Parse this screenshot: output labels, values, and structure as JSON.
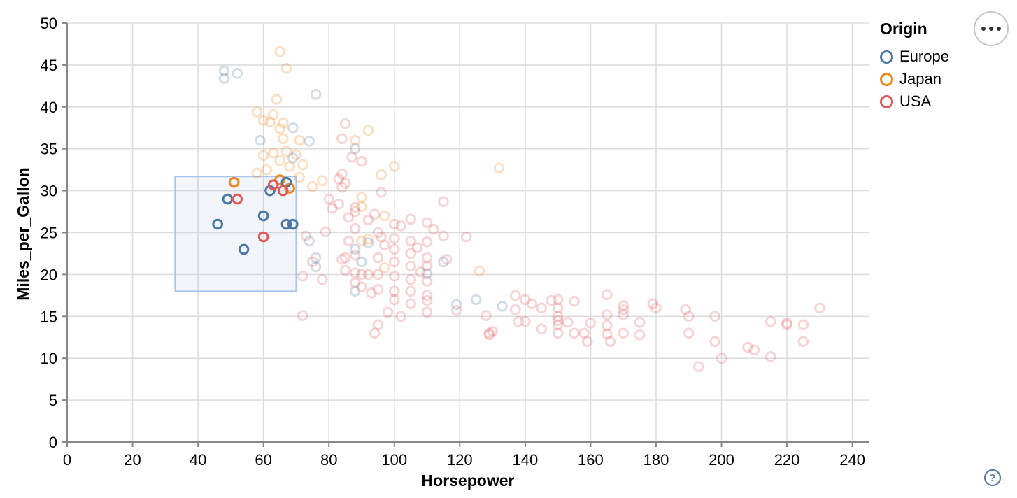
{
  "chart_data": {
    "type": "scatter",
    "title": "",
    "xlabel": "Horsepower",
    "ylabel": "Miles_per_Gallon",
    "xlim": [
      0,
      245
    ],
    "ylim": [
      0,
      50
    ],
    "x_ticks": [
      0,
      20,
      40,
      60,
      80,
      100,
      120,
      140,
      160,
      180,
      200,
      220,
      240
    ],
    "y_ticks": [
      0,
      5,
      10,
      15,
      20,
      25,
      30,
      35,
      40,
      45,
      50
    ],
    "grid": true,
    "legend": {
      "title": "Origin",
      "position": "top-right",
      "entries": [
        {
          "label": "Europe",
          "color": "#4c78a8"
        },
        {
          "label": "Japan",
          "color": "#f58518"
        },
        {
          "label": "USA",
          "color": "#e45756"
        }
      ]
    },
    "origin_colors": {
      "Europe": "#4c78a8",
      "Japan": "#f58518",
      "USA": "#e45756"
    },
    "brush_selection": {
      "x": [
        33,
        70
      ],
      "y": [
        18,
        31.7
      ],
      "fill": "#b0c6e8",
      "fill_opacity": 0.16,
      "stroke": "#aac4ee"
    },
    "unselected_opacity": 0.25,
    "point_columns": [
      "Horsepower",
      "Miles_per_Gallon",
      "Origin",
      "selected"
    ],
    "points": [
      [
        51,
        31,
        "Japan",
        1
      ],
      [
        65,
        31.3,
        "Japan",
        1
      ],
      [
        68,
        30.3,
        "Japan",
        1
      ],
      [
        67,
        31,
        "Europe",
        1
      ],
      [
        62,
        30,
        "Europe",
        1
      ],
      [
        49,
        29,
        "Europe",
        1
      ],
      [
        60,
        27,
        "Europe",
        1
      ],
      [
        46,
        26,
        "Europe",
        1
      ],
      [
        67,
        26,
        "Europe",
        1
      ],
      [
        69,
        26,
        "Europe",
        1
      ],
      [
        54,
        23,
        "Europe",
        1
      ],
      [
        63,
        30.7,
        "USA",
        1
      ],
      [
        66,
        30,
        "USA",
        1
      ],
      [
        52,
        29,
        "USA",
        1
      ],
      [
        60,
        24.5,
        "USA",
        1
      ],
      [
        65,
        46.6,
        "Japan",
        0
      ],
      [
        67,
        44.6,
        "Japan",
        0
      ],
      [
        48,
        44.3,
        "Europe",
        0
      ],
      [
        52,
        44,
        "Europe",
        0
      ],
      [
        48,
        43.4,
        "Europe",
        0
      ],
      [
        76,
        41.5,
        "Europe",
        0
      ],
      [
        64,
        40.9,
        "Japan",
        0
      ],
      [
        58,
        39.4,
        "Japan",
        0
      ],
      [
        63,
        39.1,
        "Japan",
        0
      ],
      [
        60,
        38.4,
        "Japan",
        0
      ],
      [
        62,
        38.2,
        "Japan",
        0
      ],
      [
        66,
        38.1,
        "Japan",
        0
      ],
      [
        65,
        37.4,
        "Japan",
        0
      ],
      [
        69,
        37.5,
        "Europe",
        0
      ],
      [
        85,
        38,
        "USA",
        0
      ],
      [
        92,
        37.2,
        "Japan",
        0
      ],
      [
        59,
        36,
        "Europe",
        0
      ],
      [
        66,
        36.2,
        "Japan",
        0
      ],
      [
        71,
        36,
        "Japan",
        0
      ],
      [
        74,
        35.9,
        "Europe",
        0
      ],
      [
        84,
        36.2,
        "USA",
        0
      ],
      [
        88,
        36,
        "Japan",
        0
      ],
      [
        88,
        35,
        "Europe",
        0
      ],
      [
        87,
        34,
        "USA",
        0
      ],
      [
        67,
        34.7,
        "Japan",
        0
      ],
      [
        63,
        34.5,
        "Japan",
        0
      ],
      [
        70,
        34.3,
        "Japan",
        0
      ],
      [
        60,
        34.2,
        "Japan",
        0
      ],
      [
        69,
        33.9,
        "Europe",
        0
      ],
      [
        90,
        33.5,
        "USA",
        0
      ],
      [
        65,
        33.6,
        "Japan",
        0
      ],
      [
        72,
        33.1,
        "Japan",
        0
      ],
      [
        68,
        32.9,
        "Japan",
        0
      ],
      [
        100,
        32.9,
        "Japan",
        0
      ],
      [
        132,
        32.7,
        "Japan",
        0
      ],
      [
        61,
        32.5,
        "Japan",
        0
      ],
      [
        96,
        31.9,
        "Japan",
        0
      ],
      [
        84,
        32,
        "USA",
        0
      ],
      [
        58,
        32.1,
        "Japan",
        0
      ],
      [
        83,
        31.4,
        "USA",
        0
      ],
      [
        85,
        30.9,
        "USA",
        0
      ],
      [
        84,
        30.4,
        "USA",
        0
      ],
      [
        90,
        29.2,
        "Japan",
        0
      ],
      [
        115,
        28.7,
        "USA",
        0
      ],
      [
        75,
        30.5,
        "Japan",
        0
      ],
      [
        78,
        31.2,
        "Japan",
        0
      ],
      [
        71,
        31.6,
        "Japan",
        0
      ],
      [
        74,
        24,
        "Europe",
        0
      ],
      [
        76,
        22,
        "Europe",
        0
      ],
      [
        73,
        24.6,
        "USA",
        0
      ],
      [
        75,
        21.5,
        "USA",
        0
      ],
      [
        72,
        19.8,
        "USA",
        0
      ],
      [
        76,
        20.9,
        "Europe",
        0
      ],
      [
        78,
        19.4,
        "USA",
        0
      ],
      [
        72,
        15.1,
        "USA",
        0
      ],
      [
        80,
        29,
        "USA",
        0
      ],
      [
        83,
        28.4,
        "USA",
        0
      ],
      [
        88,
        28,
        "USA",
        0
      ],
      [
        88,
        27.5,
        "USA",
        0
      ],
      [
        90,
        28.1,
        "Japan",
        0
      ],
      [
        94,
        27.2,
        "USA",
        0
      ],
      [
        86,
        26.8,
        "USA",
        0
      ],
      [
        92,
        26.5,
        "USA",
        0
      ],
      [
        97,
        27,
        "Japan",
        0
      ],
      [
        100,
        26,
        "USA",
        0
      ],
      [
        105,
        26.6,
        "USA",
        0
      ],
      [
        110,
        26.2,
        "USA",
        0
      ],
      [
        88,
        25.5,
        "USA",
        0
      ],
      [
        95,
        25,
        "USA",
        0
      ],
      [
        100,
        24.3,
        "USA",
        0
      ],
      [
        105,
        24,
        "USA",
        0
      ],
      [
        110,
        23.9,
        "USA",
        0
      ],
      [
        115,
        24.6,
        "USA",
        0
      ],
      [
        86,
        24,
        "USA",
        0
      ],
      [
        90,
        24,
        "Japan",
        0
      ],
      [
        92,
        23.8,
        "Europe",
        0
      ],
      [
        97,
        23.5,
        "USA",
        0
      ],
      [
        100,
        23,
        "USA",
        0
      ],
      [
        105,
        22.5,
        "USA",
        0
      ],
      [
        110,
        22,
        "USA",
        0
      ],
      [
        88,
        22.3,
        "USA",
        0
      ],
      [
        85,
        22,
        "USA",
        0
      ],
      [
        95,
        22,
        "USA",
        0
      ],
      [
        100,
        21.5,
        "USA",
        0
      ],
      [
        105,
        21,
        "USA",
        0
      ],
      [
        110,
        21,
        "USA",
        0
      ],
      [
        115,
        21.5,
        "Europe",
        0
      ],
      [
        85,
        20.5,
        "USA",
        0
      ],
      [
        88,
        20.2,
        "USA",
        0
      ],
      [
        90,
        20,
        "USA",
        0
      ],
      [
        92,
        20,
        "USA",
        0
      ],
      [
        95,
        20,
        "USA",
        0
      ],
      [
        100,
        19.8,
        "USA",
        0
      ],
      [
        105,
        19.4,
        "USA",
        0
      ],
      [
        110,
        19.2,
        "USA",
        0
      ],
      [
        88,
        19,
        "USA",
        0
      ],
      [
        90,
        18.5,
        "USA",
        0
      ],
      [
        95,
        18.2,
        "USA",
        0
      ],
      [
        100,
        18,
        "USA",
        0
      ],
      [
        105,
        18,
        "USA",
        0
      ],
      [
        110,
        17.5,
        "USA",
        0
      ],
      [
        100,
        17,
        "USA",
        0
      ],
      [
        110,
        16.9,
        "USA",
        0
      ],
      [
        105,
        16.5,
        "USA",
        0
      ],
      [
        110,
        15.5,
        "USA",
        0
      ],
      [
        98,
        15.5,
        "USA",
        0
      ],
      [
        102,
        15,
        "USA",
        0
      ],
      [
        88,
        18,
        "Europe",
        0
      ],
      [
        93,
        17.8,
        "USA",
        0
      ],
      [
        96,
        24.5,
        "USA",
        0
      ],
      [
        108,
        20.3,
        "USA",
        0
      ],
      [
        84,
        21.8,
        "USA",
        0
      ],
      [
        107,
        23.2,
        "USA",
        0
      ],
      [
        112,
        25.4,
        "USA",
        0
      ],
      [
        102,
        25.8,
        "USA",
        0
      ],
      [
        96,
        29.8,
        "USA",
        0
      ],
      [
        81,
        27.9,
        "USA",
        0
      ],
      [
        79,
        25.1,
        "USA",
        0
      ],
      [
        92,
        24.2,
        "Japan",
        0
      ],
      [
        97,
        20.8,
        "Japan",
        0
      ],
      [
        90,
        21.5,
        "Europe",
        0
      ],
      [
        110,
        20.1,
        "Europe",
        0
      ],
      [
        88,
        23,
        "Europe",
        0
      ],
      [
        95,
        14,
        "USA",
        0
      ],
      [
        94,
        13,
        "USA",
        0
      ],
      [
        119,
        16.4,
        "Europe",
        0
      ],
      [
        125,
        17,
        "Europe",
        0
      ],
      [
        133,
        16.2,
        "Europe",
        0
      ],
      [
        119,
        15.7,
        "USA",
        0
      ],
      [
        128,
        15.1,
        "USA",
        0
      ],
      [
        130,
        13.2,
        "USA",
        0
      ],
      [
        129,
        13,
        "USA",
        0
      ],
      [
        138,
        14.4,
        "USA",
        0
      ],
      [
        140,
        14.4,
        "USA",
        0
      ],
      [
        137,
        17.5,
        "USA",
        0
      ],
      [
        140,
        17,
        "USA",
        0
      ],
      [
        142,
        16.5,
        "USA",
        0
      ],
      [
        145,
        16,
        "USA",
        0
      ],
      [
        148,
        16.9,
        "USA",
        0
      ],
      [
        150,
        17,
        "USA",
        0
      ],
      [
        150,
        16,
        "USA",
        0
      ],
      [
        150,
        15,
        "USA",
        0
      ],
      [
        150,
        14.5,
        "USA",
        0
      ],
      [
        150,
        14,
        "USA",
        0
      ],
      [
        150,
        13,
        "USA",
        0
      ],
      [
        153,
        14.3,
        "USA",
        0
      ],
      [
        129,
        12.8,
        "USA",
        0
      ],
      [
        145,
        13.5,
        "USA",
        0
      ],
      [
        137,
        15.8,
        "USA",
        0
      ],
      [
        126,
        20.4,
        "Japan",
        0
      ],
      [
        122,
        24.5,
        "USA",
        0
      ],
      [
        116,
        21.8,
        "USA",
        0
      ],
      [
        165,
        17.6,
        "USA",
        0
      ],
      [
        155,
        16.8,
        "USA",
        0
      ],
      [
        170,
        16.3,
        "USA",
        0
      ],
      [
        170,
        15.8,
        "USA",
        0
      ],
      [
        170,
        15.2,
        "USA",
        0
      ],
      [
        165,
        15.2,
        "USA",
        0
      ],
      [
        165,
        13.9,
        "USA",
        0
      ],
      [
        165,
        12.9,
        "USA",
        0
      ],
      [
        160,
        14.2,
        "USA",
        0
      ],
      [
        155,
        13,
        "USA",
        0
      ],
      [
        158,
        13,
        "USA",
        0
      ],
      [
        159,
        12,
        "USA",
        0
      ],
      [
        166,
        12,
        "USA",
        0
      ],
      [
        170,
        13,
        "USA",
        0
      ],
      [
        175,
        14.3,
        "USA",
        0
      ],
      [
        175,
        12.8,
        "USA",
        0
      ],
      [
        179,
        16.5,
        "USA",
        0
      ],
      [
        180,
        16,
        "USA",
        0
      ],
      [
        189,
        15.8,
        "USA",
        0
      ],
      [
        190,
        15,
        "USA",
        0
      ],
      [
        190,
        13,
        "USA",
        0
      ],
      [
        198,
        15,
        "USA",
        0
      ],
      [
        198,
        12,
        "USA",
        0
      ],
      [
        208,
        11.3,
        "USA",
        0
      ],
      [
        210,
        11,
        "USA",
        0
      ],
      [
        215,
        10.2,
        "USA",
        0
      ],
      [
        193,
        9,
        "USA",
        0
      ],
      [
        200,
        10,
        "USA",
        0
      ],
      [
        215,
        14.4,
        "USA",
        0
      ],
      [
        220,
        14.2,
        "USA",
        0
      ],
      [
        230,
        16,
        "USA",
        0
      ],
      [
        225,
        14,
        "USA",
        0
      ],
      [
        220,
        14,
        "USA",
        0
      ],
      [
        225,
        12,
        "USA",
        0
      ]
    ]
  },
  "controls": {
    "actions_menu_tooltip": "Click to view actions",
    "help_glyph": "?"
  }
}
